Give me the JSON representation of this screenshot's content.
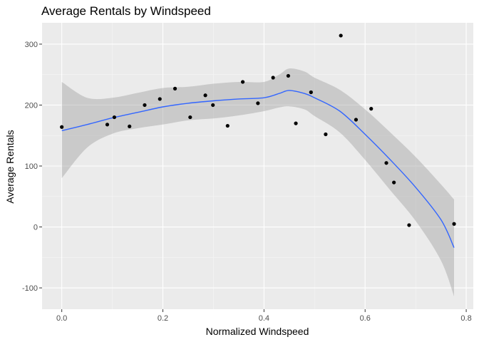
{
  "chart_data": {
    "type": "scatter",
    "title": "Average Rentals by Windspeed",
    "xlabel": "Normalized Windspeed",
    "ylabel": "Average Rentals",
    "xlim": [
      -0.039,
      0.814
    ],
    "ylim": [
      -135,
      335
    ],
    "x_ticks": [
      0.0,
      0.2,
      0.4,
      0.6,
      0.8
    ],
    "x_tick_labels": [
      "0.0",
      "0.2",
      "0.4",
      "0.6",
      "0.8"
    ],
    "y_ticks": [
      -100,
      0,
      100,
      200,
      300
    ],
    "y_tick_labels": [
      "-100",
      "0",
      "100",
      "200",
      "300"
    ],
    "grid": true,
    "legend": "none",
    "colors": {
      "panel": "#ebebeb",
      "grid_major": "#ffffff",
      "points": "#000000",
      "smooth_line": "#3366ff",
      "ribbon": "#999999"
    },
    "points": [
      {
        "x": 0.0,
        "y": 164
      },
      {
        "x": 0.09,
        "y": 168
      },
      {
        "x": 0.104,
        "y": 180
      },
      {
        "x": 0.134,
        "y": 165
      },
      {
        "x": 0.164,
        "y": 200
      },
      {
        "x": 0.194,
        "y": 210
      },
      {
        "x": 0.224,
        "y": 227
      },
      {
        "x": 0.254,
        "y": 180
      },
      {
        "x": 0.284,
        "y": 216
      },
      {
        "x": 0.299,
        "y": 200
      },
      {
        "x": 0.328,
        "y": 166
      },
      {
        "x": 0.358,
        "y": 238
      },
      {
        "x": 0.388,
        "y": 203
      },
      {
        "x": 0.418,
        "y": 245
      },
      {
        "x": 0.448,
        "y": 248
      },
      {
        "x": 0.463,
        "y": 170
      },
      {
        "x": 0.493,
        "y": 221
      },
      {
        "x": 0.522,
        "y": 152
      },
      {
        "x": 0.552,
        "y": 314
      },
      {
        "x": 0.582,
        "y": 176
      },
      {
        "x": 0.612,
        "y": 194
      },
      {
        "x": 0.642,
        "y": 105
      },
      {
        "x": 0.657,
        "y": 73
      },
      {
        "x": 0.687,
        "y": 3
      },
      {
        "x": 0.776,
        "y": 5
      }
    ],
    "smooth": {
      "x": [
        0.0,
        0.05,
        0.1,
        0.15,
        0.2,
        0.25,
        0.3,
        0.35,
        0.4,
        0.43,
        0.45,
        0.48,
        0.5,
        0.55,
        0.6,
        0.65,
        0.7,
        0.75,
        0.776
      ],
      "y": [
        158,
        168,
        179,
        188,
        197,
        203,
        207,
        210,
        212,
        219,
        224,
        219,
        212,
        190,
        152,
        110,
        65,
        12,
        -34
      ],
      "lower": [
        80,
        130,
        153,
        162,
        168,
        175,
        178,
        183,
        190,
        196,
        198,
        193,
        182,
        155,
        110,
        60,
        10,
        -55,
        -114
      ],
      "upper": [
        238,
        212,
        212,
        220,
        228,
        230,
        235,
        238,
        238,
        250,
        260,
        255,
        245,
        225,
        193,
        155,
        115,
        70,
        45
      ]
    }
  }
}
